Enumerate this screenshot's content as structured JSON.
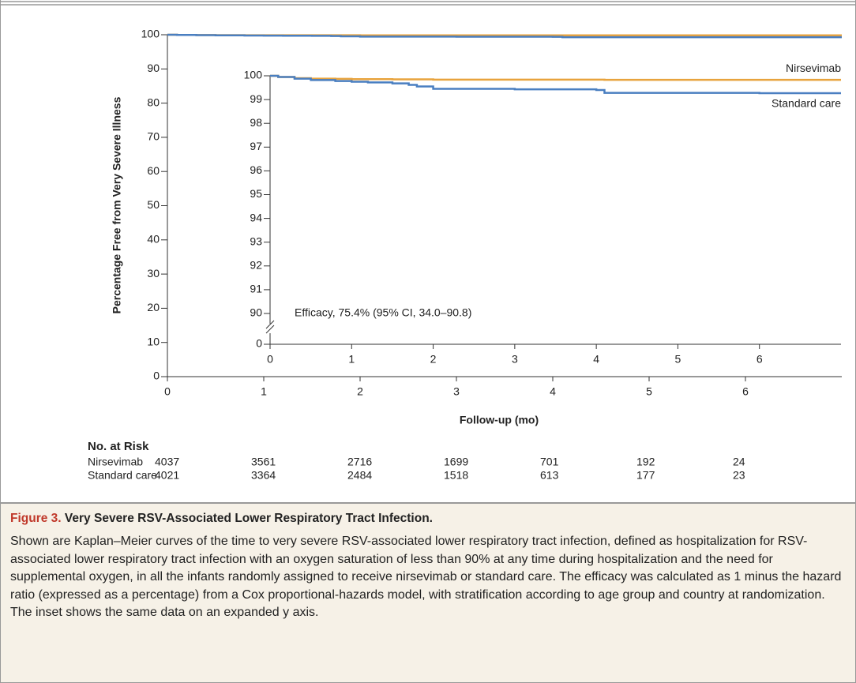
{
  "chart_data": [
    {
      "type": "line",
      "step": true,
      "ylabel": "Percentage Free from Very Severe Illness",
      "xlabel": "Follow-up (mo)",
      "x": [
        0,
        0.1,
        0.3,
        0.5,
        0.8,
        1.0,
        1.2,
        1.5,
        1.7,
        1.8,
        2.0,
        3.0,
        4.0,
        4.1,
        5.0,
        6.0,
        7.0
      ],
      "series": [
        {
          "color": "#e8a33d",
          "values": [
            100,
            99.95,
            99.9,
            99.88,
            99.87,
            99.86,
            99.86,
            99.85,
            99.85,
            99.85,
            99.84,
            99.84,
            99.84,
            99.83,
            99.83,
            99.83,
            99.83
          ]
        },
        {
          "color": "#4a7fc1",
          "values": [
            100,
            99.95,
            99.88,
            99.82,
            99.78,
            99.75,
            99.72,
            99.68,
            99.62,
            99.55,
            99.45,
            99.43,
            99.4,
            99.28,
            99.28,
            99.27,
            99.27
          ]
        }
      ],
      "xlim": [
        0,
        7
      ],
      "xticks": [
        0,
        1,
        2,
        3,
        4,
        5,
        6
      ],
      "ylim": [
        0,
        100
      ],
      "yticks": [
        0,
        10,
        20,
        30,
        40,
        50,
        60,
        70,
        80,
        90,
        100
      ]
    },
    {
      "type": "line",
      "step": true,
      "y_break": true,
      "annotation": "Efficacy, 75.4% (95% CI, 34.0–90.8)",
      "x": [
        0,
        0.1,
        0.3,
        0.5,
        0.8,
        1.0,
        1.2,
        1.5,
        1.7,
        1.8,
        2.0,
        3.0,
        4.0,
        4.1,
        5.0,
        6.0,
        7.0
      ],
      "series": [
        {
          "name": "Nirsevimab",
          "color": "#e8a33d",
          "values": [
            100,
            99.95,
            99.9,
            99.88,
            99.87,
            99.86,
            99.86,
            99.85,
            99.85,
            99.85,
            99.84,
            99.84,
            99.84,
            99.83,
            99.83,
            99.83,
            99.83
          ]
        },
        {
          "name": "Standard care",
          "color": "#4a7fc1",
          "values": [
            100,
            99.95,
            99.88,
            99.82,
            99.78,
            99.75,
            99.72,
            99.68,
            99.62,
            99.55,
            99.45,
            99.43,
            99.4,
            99.28,
            99.28,
            99.27,
            99.27
          ]
        }
      ],
      "xlim": [
        0,
        7
      ],
      "xticks": [
        0,
        1,
        2,
        3,
        4,
        5,
        6
      ],
      "ylim": [
        90,
        100
      ],
      "yticks": [
        0,
        90,
        91,
        92,
        93,
        94,
        95,
        96,
        97,
        98,
        99,
        100
      ]
    }
  ],
  "risk_table": {
    "title": "No. at Risk",
    "rows": [
      {
        "name": "Nirsevimab",
        "values": [
          4037,
          3561,
          2716,
          1699,
          701,
          192,
          24
        ]
      },
      {
        "name": "Standard care",
        "values": [
          4021,
          3364,
          2484,
          1518,
          613,
          177,
          23
        ]
      }
    ]
  },
  "caption": {
    "label": "Figure 3.",
    "title": "Very Severe RSV-Associated Lower Respiratory Tract Infection.",
    "text": "Shown are Kaplan–Meier curves of the time to very severe RSV-associated lower respiratory tract infection, defined as hospitalization for RSV-associated lower respiratory tract infection with an oxygen saturation of less than 90% at any time during hospitalization and the need for supplemental oxygen, in all the infants randomly assigned to receive nirsevimab or standard care. The efficacy was calculated as 1 minus the hazard ratio (expressed as a percentage) from a Cox proportional-hazards model, with stratification according to age group and country at randomization. The inset shows the same data on an expanded y axis."
  }
}
